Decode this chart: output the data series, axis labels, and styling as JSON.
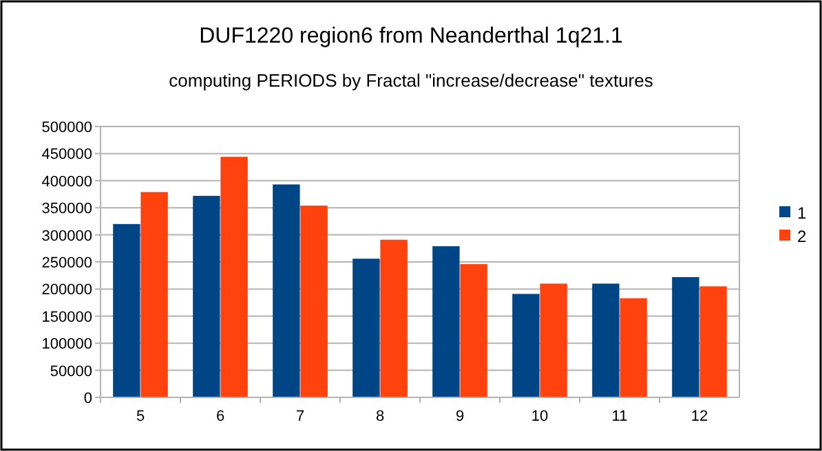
{
  "chart_data": {
    "type": "bar",
    "title": "DUF1220  region6  from Neanderthal  1q21.1",
    "subtitle": "computing PERIODS by Fractal \"increase/decrease\" textures",
    "categories": [
      "5",
      "6",
      "7",
      "8",
      "9",
      "10",
      "11",
      "12"
    ],
    "series": [
      {
        "name": "1",
        "color": "#004586",
        "values": [
          320000,
          372000,
          393000,
          256000,
          279000,
          191000,
          210000,
          222000
        ]
      },
      {
        "name": "2",
        "color": "#ff420e",
        "values": [
          379000,
          444000,
          354000,
          291000,
          246000,
          210000,
          183000,
          205000
        ]
      }
    ],
    "ylim": [
      0,
      500000
    ],
    "yticks": [
      0,
      50000,
      100000,
      150000,
      200000,
      250000,
      300000,
      350000,
      400000,
      450000,
      500000
    ],
    "grid": "y",
    "legend": "right"
  }
}
